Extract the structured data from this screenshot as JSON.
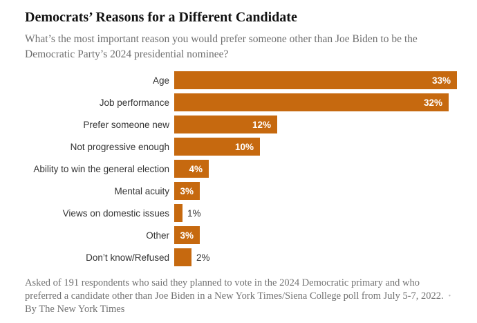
{
  "header": {
    "title": "Democrats’ Reasons for a Different Candidate",
    "subtitle": "What’s the most important reason you would prefer someone other than Joe Biden to be the Democratic Party’s 2024 presidential nominee?"
  },
  "chart_data": {
    "type": "bar",
    "orientation": "horizontal",
    "title": "Democrats’ Reasons for a Different Candidate",
    "categories": [
      "Age",
      "Job performance",
      "Prefer someone new",
      "Not progressive enough",
      "Ability to win the general election",
      "Mental acuity",
      "Views on domestic issues",
      "Other",
      "Don’t know/Refused"
    ],
    "values": [
      33,
      32,
      12,
      10,
      4,
      3,
      1,
      3,
      2
    ],
    "value_labels": [
      "33%",
      "32%",
      "12%",
      "10%",
      "4%",
      "3%",
      "1%",
      "3%",
      "2%"
    ],
    "unit": "%",
    "xlim": [
      0,
      33
    ],
    "grid": false,
    "legend": false,
    "xlabel": "",
    "ylabel": "",
    "bar_color": "#C6690F",
    "inside_label_color": "#FFFFFF",
    "outside_label_color": "#333333",
    "inside_label_min_value": 3
  },
  "footer": {
    "note": "Asked of 191 respondents who said they planned to vote in the 2024 Democratic primary and who preferred a candidate other than Joe Biden in a New York Times/Siena College poll from July 5-7, 2022.",
    "separator": "•",
    "byline": "By The New York Times"
  }
}
